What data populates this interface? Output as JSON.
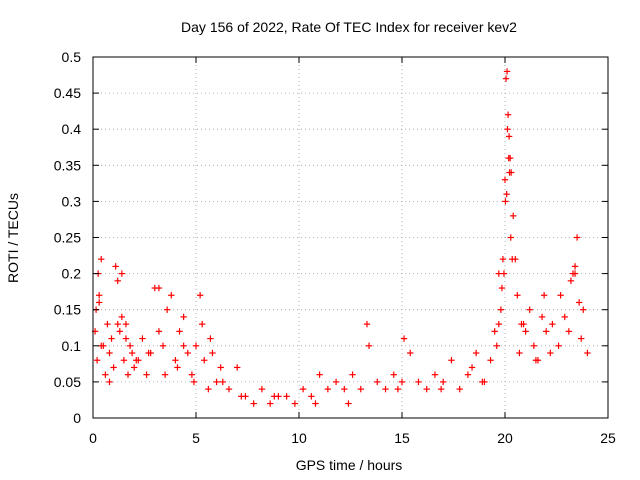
{
  "chart_data": {
    "type": "scatter",
    "title": "Day 156 of 2022, Rate Of TEC Index for receiver kev2",
    "xlabel": "GPS time / hours",
    "ylabel": "ROTI / TECUs",
    "xlim": [
      0,
      25
    ],
    "ylim": [
      0,
      0.5
    ],
    "xticks": [
      0,
      5,
      10,
      15,
      20,
      25
    ],
    "yticks": [
      0,
      0.05,
      0.1,
      0.15,
      0.2,
      0.25,
      0.3,
      0.35,
      0.4,
      0.45,
      0.5
    ],
    "xtick_labels": [
      "0",
      "5",
      "10",
      "15",
      "20",
      "25"
    ],
    "ytick_labels": [
      "0",
      "0.05",
      "0.1",
      "0.15",
      "0.2",
      "0.25",
      "0.3",
      "0.35",
      "0.4",
      "0.45",
      "0.5"
    ],
    "grid": true,
    "legend": "none",
    "marker": "+",
    "color": "#ff0000",
    "series": [
      {
        "x": [
          0.1,
          0.2,
          0.3,
          0.4,
          0.5,
          0.6,
          0.7,
          0.8,
          0.9,
          1.0,
          1.1,
          1.2,
          1.3,
          1.4,
          1.5,
          1.6,
          1.7,
          1.8,
          1.9,
          2.0,
          2.2,
          2.4,
          2.6,
          2.8,
          3.0,
          3.2,
          3.4,
          3.6,
          3.8,
          4.0,
          4.2,
          4.4,
          4.6,
          4.8,
          5.0,
          5.2,
          5.4,
          5.6,
          5.8,
          6.0,
          6.3,
          6.6,
          7.0,
          7.4,
          7.8,
          8.2,
          8.6,
          9.0,
          9.4,
          9.8,
          10.2,
          10.6,
          11.0,
          11.4,
          11.8,
          12.2,
          12.6,
          13.0,
          13.4,
          13.8,
          14.2,
          14.6,
          15.0,
          15.4,
          15.8,
          16.2,
          16.6,
          17.0,
          17.4,
          17.8,
          18.2,
          18.6,
          19.0,
          19.3,
          19.5,
          19.7,
          19.8,
          19.9,
          20.0,
          20.05,
          20.1,
          20.15,
          20.2,
          20.25,
          20.3,
          20.4,
          20.5,
          20.6,
          20.8,
          21.0,
          21.2,
          21.4,
          21.6,
          21.8,
          22.0,
          22.3,
          22.6,
          22.9,
          23.2,
          23.4,
          23.6,
          23.8,
          24.0,
          0.3,
          0.25,
          1.2,
          1.4,
          3.2,
          4.4,
          5.3,
          13.3,
          15.1,
          18.4,
          19.7,
          19.85,
          19.95,
          20.02,
          20.08,
          20.12,
          20.18,
          20.22,
          20.28,
          20.35,
          23.3,
          23.4,
          23.5,
          22.7,
          21.9,
          20.9,
          0.15,
          0.4,
          0.8,
          1.6,
          2.1,
          2.7,
          3.5,
          4.1,
          4.9,
          5.7,
          6.2,
          7.2,
          8.8,
          10.8,
          12.4,
          14.8,
          16.9,
          18.9,
          19.6,
          20.7,
          21.5,
          22.2,
          23.1,
          23.7
        ],
        "y": [
          0.12,
          0.08,
          0.17,
          0.22,
          0.1,
          0.06,
          0.13,
          0.09,
          0.11,
          0.07,
          0.21,
          0.19,
          0.12,
          0.14,
          0.08,
          0.13,
          0.06,
          0.1,
          0.09,
          0.07,
          0.08,
          0.11,
          0.06,
          0.09,
          0.18,
          0.12,
          0.1,
          0.15,
          0.17,
          0.08,
          0.12,
          0.1,
          0.09,
          0.06,
          0.1,
          0.17,
          0.08,
          0.04,
          0.09,
          0.05,
          0.05,
          0.04,
          0.07,
          0.03,
          0.02,
          0.04,
          0.02,
          0.03,
          0.03,
          0.02,
          0.04,
          0.03,
          0.06,
          0.04,
          0.05,
          0.04,
          0.06,
          0.04,
          0.1,
          0.05,
          0.04,
          0.06,
          0.05,
          0.09,
          0.05,
          0.04,
          0.06,
          0.05,
          0.08,
          0.04,
          0.06,
          0.09,
          0.05,
          0.08,
          0.12,
          0.2,
          0.15,
          0.22,
          0.33,
          0.47,
          0.48,
          0.42,
          0.39,
          0.36,
          0.34,
          0.28,
          0.22,
          0.17,
          0.13,
          0.12,
          0.15,
          0.1,
          0.08,
          0.14,
          0.12,
          0.13,
          0.1,
          0.14,
          0.19,
          0.2,
          0.16,
          0.15,
          0.09,
          0.16,
          0.2,
          0.13,
          0.2,
          0.18,
          0.14,
          0.13,
          0.13,
          0.11,
          0.07,
          0.13,
          0.18,
          0.2,
          0.3,
          0.31,
          0.4,
          0.36,
          0.34,
          0.25,
          0.22,
          0.2,
          0.21,
          0.25,
          0.17,
          0.17,
          0.13,
          0.15,
          0.1,
          0.05,
          0.11,
          0.08,
          0.09,
          0.06,
          0.07,
          0.05,
          0.11,
          0.07,
          0.03,
          0.03,
          0.02,
          0.02,
          0.04,
          0.04,
          0.05,
          0.1,
          0.09,
          0.08,
          0.09,
          0.12,
          0.11
        ]
      }
    ]
  }
}
